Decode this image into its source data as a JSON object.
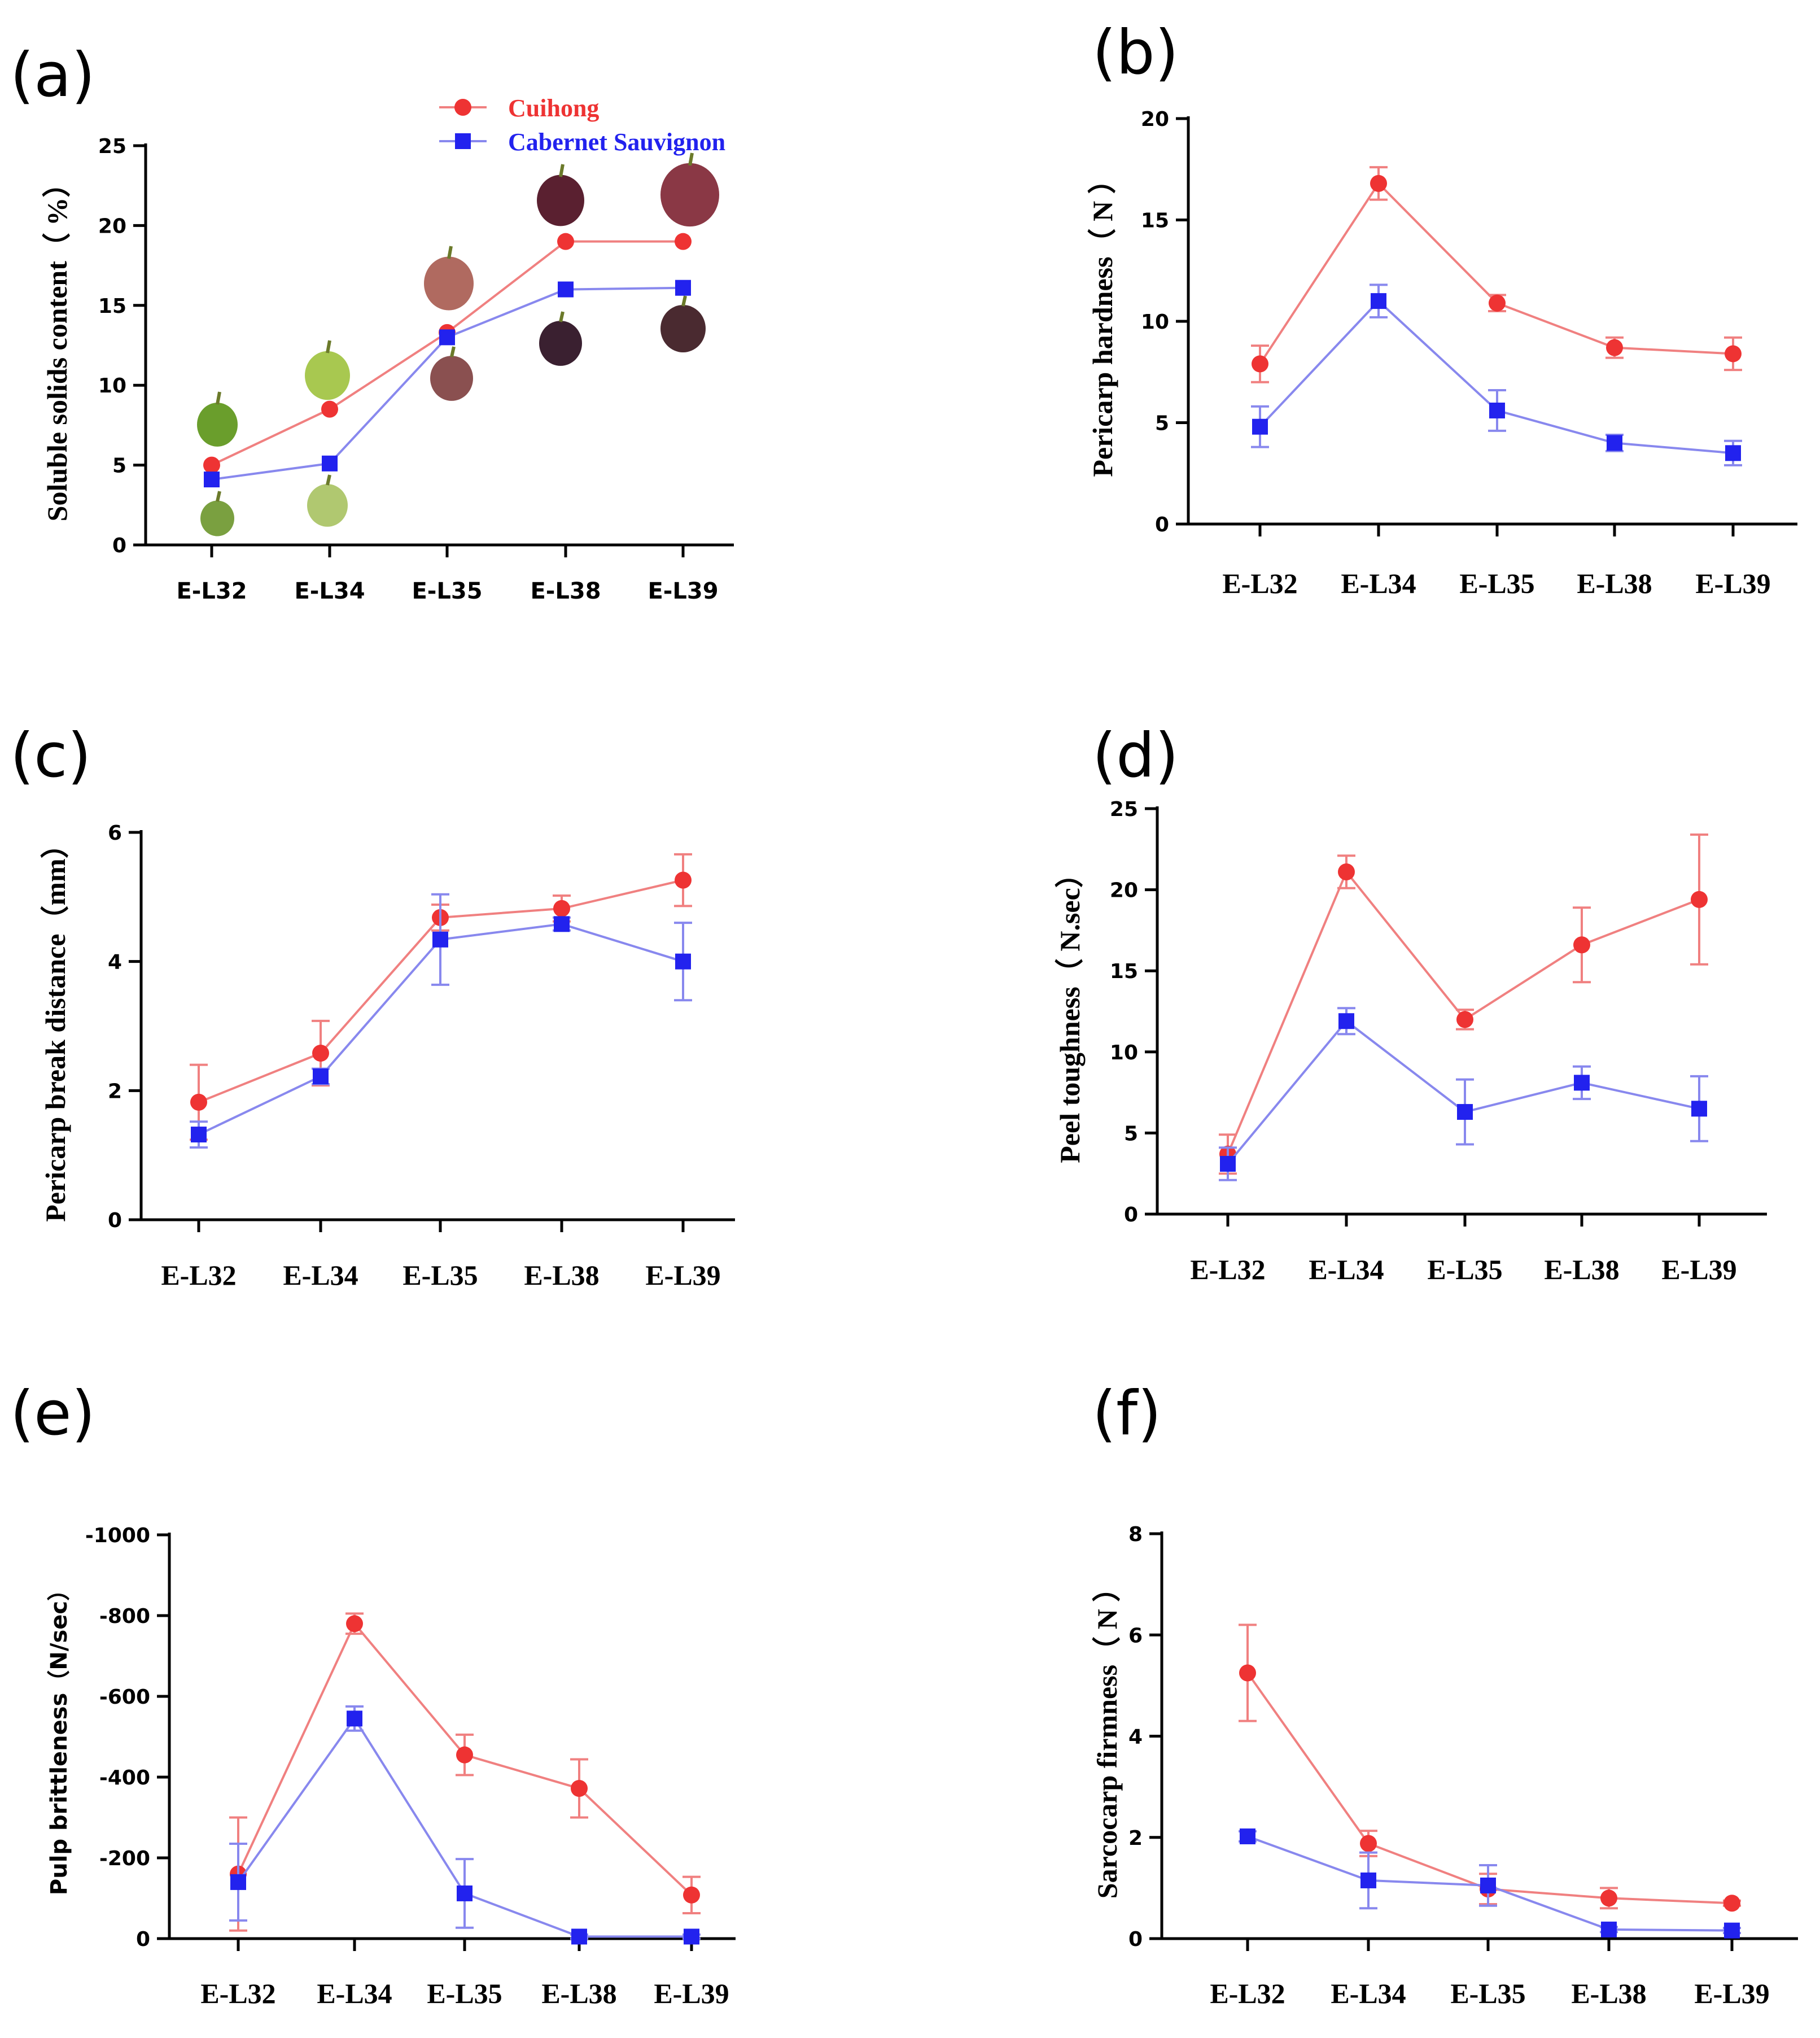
{
  "colors": {
    "cuihong": "#ee3333",
    "cabernet": "#2222ee",
    "axis": "#000000"
  },
  "legend": {
    "cuihong": "Cuihong",
    "cabernet": "Cabernet Sauvignon"
  },
  "chart_data": [
    {
      "panel": "(a)",
      "type": "line",
      "categories": [
        "E-L32",
        "E-L34",
        "E-L35",
        "E-L38",
        "E-L39"
      ],
      "ylabel": "Soluble solids content（ %）",
      "ylim": [
        0,
        25
      ],
      "yticks": [
        0,
        5,
        10,
        15,
        20,
        25
      ],
      "series": [
        {
          "name": "Cuihong",
          "values": [
            5.0,
            8.5,
            13.3,
            19.0,
            19.0
          ],
          "errors": [
            0,
            0,
            0,
            0,
            0
          ]
        },
        {
          "name": "Cabernet Sauvignon",
          "values": [
            4.1,
            5.1,
            13.0,
            16.0,
            16.1
          ],
          "errors": [
            0,
            0,
            0,
            0,
            0
          ]
        }
      ],
      "grape_images": [
        {
          "category": "E-L32",
          "cuihong_color": "#6a9e2c",
          "cabernet_color": "#7aa040"
        },
        {
          "category": "E-L34",
          "cuihong_color": "#a8c850",
          "cabernet_color": "#b0c870"
        },
        {
          "category": "E-L35",
          "cuihong_color": "#b06a60",
          "cabernet_color": "#8a5050"
        },
        {
          "category": "E-L38",
          "cuihong_color": "#5a2030",
          "cabernet_color": "#3a2030"
        },
        {
          "category": "E-L39",
          "cuihong_color": "#8a3845",
          "cabernet_color": "#4a2a30"
        }
      ]
    },
    {
      "panel": "(b)",
      "type": "line",
      "categories": [
        "E-L32",
        "E-L34",
        "E-L35",
        "E-L38",
        "E-L39"
      ],
      "ylabel": "Pericarp hardness（ N ）",
      "ylim": [
        0,
        20
      ],
      "yticks": [
        0,
        5,
        10,
        15,
        20
      ],
      "series": [
        {
          "name": "Cuihong",
          "values": [
            7.9,
            16.8,
            10.9,
            8.7,
            8.4
          ],
          "errors": [
            0.9,
            0.8,
            0.4,
            0.5,
            0.8
          ]
        },
        {
          "name": "Cabernet Sauvignon",
          "values": [
            4.8,
            11.0,
            5.6,
            4.0,
            3.5
          ],
          "errors": [
            1.0,
            0.8,
            1.0,
            0.4,
            0.6
          ]
        }
      ]
    },
    {
      "panel": "(c)",
      "type": "line",
      "categories": [
        "E-L32",
        "E-L34",
        "E-L35",
        "E-L38",
        "E-L39"
      ],
      "ylabel": "Pericarp break distance（mm）",
      "ylim": [
        0,
        6
      ],
      "yticks": [
        0,
        2,
        4,
        6
      ],
      "series": [
        {
          "name": "Cuihong",
          "values": [
            1.82,
            2.58,
            4.68,
            4.82,
            5.26
          ],
          "errors": [
            0.58,
            0.5,
            0.2,
            0.2,
            0.4
          ]
        },
        {
          "name": "Cabernet Sauvignon",
          "values": [
            1.32,
            2.22,
            4.34,
            4.58,
            4.0
          ],
          "errors": [
            0.2,
            0.12,
            0.7,
            0.1,
            0.6
          ]
        }
      ]
    },
    {
      "panel": "(d)",
      "type": "line",
      "categories": [
        "E-L32",
        "E-L34",
        "E-L35",
        "E-L38",
        "E-L39"
      ],
      "ylabel": "Peel toughness（ N.sec）",
      "ylim": [
        0,
        25
      ],
      "yticks": [
        0,
        5,
        10,
        15,
        20,
        25
      ],
      "series": [
        {
          "name": "Cuihong",
          "values": [
            3.7,
            21.1,
            12.0,
            16.6,
            19.4
          ],
          "errors": [
            1.2,
            1.0,
            0.6,
            2.3,
            4.0
          ]
        },
        {
          "name": "Cabernet Sauvignon",
          "values": [
            3.1,
            11.9,
            6.3,
            8.1,
            6.5
          ],
          "errors": [
            1.0,
            0.8,
            2.0,
            1.0,
            2.0
          ]
        }
      ]
    },
    {
      "panel": "(e)",
      "type": "line",
      "categories": [
        "E-L32",
        "E-L34",
        "E-L35",
        "E-L38",
        "E-L39"
      ],
      "ylabel": "Pulp brittleness（N/sec）",
      "ylim": [
        0,
        -1000
      ],
      "yticks": [
        0,
        -200,
        -400,
        -600,
        -800,
        -1000
      ],
      "series": [
        {
          "name": "Cuihong",
          "values": [
            -160,
            -780,
            -455,
            -372,
            -108
          ],
          "errors": [
            140,
            25,
            50,
            72,
            45
          ]
        },
        {
          "name": "Cabernet Sauvignon",
          "values": [
            -140,
            -545,
            -112,
            -5,
            -5
          ],
          "errors": [
            95,
            30,
            85,
            5,
            5
          ]
        }
      ]
    },
    {
      "panel": "(f)",
      "type": "line",
      "categories": [
        "E-L32",
        "E-L34",
        "E-L35",
        "E-L38",
        "E-L39"
      ],
      "ylabel": "Sarcocarp firmness（ N ）",
      "ylim": [
        0,
        8
      ],
      "yticks": [
        0,
        2,
        4,
        6,
        8
      ],
      "series": [
        {
          "name": "Cuihong",
          "values": [
            5.25,
            1.88,
            0.98,
            0.8,
            0.7
          ],
          "errors": [
            0.95,
            0.25,
            0.3,
            0.2,
            0.05
          ]
        },
        {
          "name": "Cabernet Sauvignon",
          "values": [
            2.02,
            1.15,
            1.05,
            0.18,
            0.16
          ],
          "errors": [
            0.1,
            0.55,
            0.4,
            0.05,
            0.05
          ]
        }
      ]
    }
  ]
}
